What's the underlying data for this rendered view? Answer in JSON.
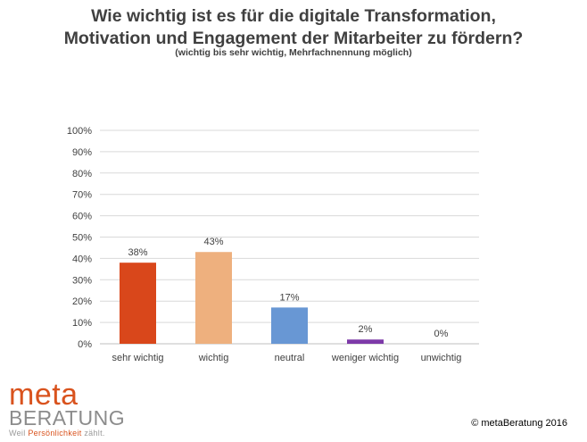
{
  "chart_data": {
    "type": "bar",
    "title_lines": [
      "Wie wichtig ist es für die digitale Transformation,",
      "Motivation und Engagement der Mitarbeiter zu fördern?"
    ],
    "subtitle": "(wichtig bis sehr wichtig, Mehrfachnennung möglich)",
    "categories": [
      "sehr wichtig",
      "wichtig",
      "neutral",
      "weniger wichtig",
      "unwichtig"
    ],
    "values": [
      38,
      43,
      17,
      2,
      0
    ],
    "data_labels": [
      "38%",
      "43%",
      "17%",
      "2%",
      "0%"
    ],
    "colors": [
      "#d9471b",
      "#eeb07e",
      "#6897d4",
      "#7d3aa8",
      "#7d3aa8"
    ],
    "ylim": [
      0,
      100
    ],
    "yticks": [
      0,
      10,
      20,
      30,
      40,
      50,
      60,
      70,
      80,
      90,
      100
    ],
    "ytick_labels": [
      "0%",
      "10%",
      "20%",
      "30%",
      "40%",
      "50%",
      "60%",
      "70%",
      "80%",
      "90%",
      "100%"
    ],
    "xlabel": "",
    "ylabel": "",
    "grid": true,
    "legend": "none"
  },
  "logo": {
    "line1": "meta",
    "line2": "BERATUNG",
    "tagline_prefix": "Weil ",
    "tagline_accent": "Persönlichkeit",
    "tagline_suffix": " zählt."
  },
  "footer": {
    "copyright": "© metaBeratung 2016"
  }
}
